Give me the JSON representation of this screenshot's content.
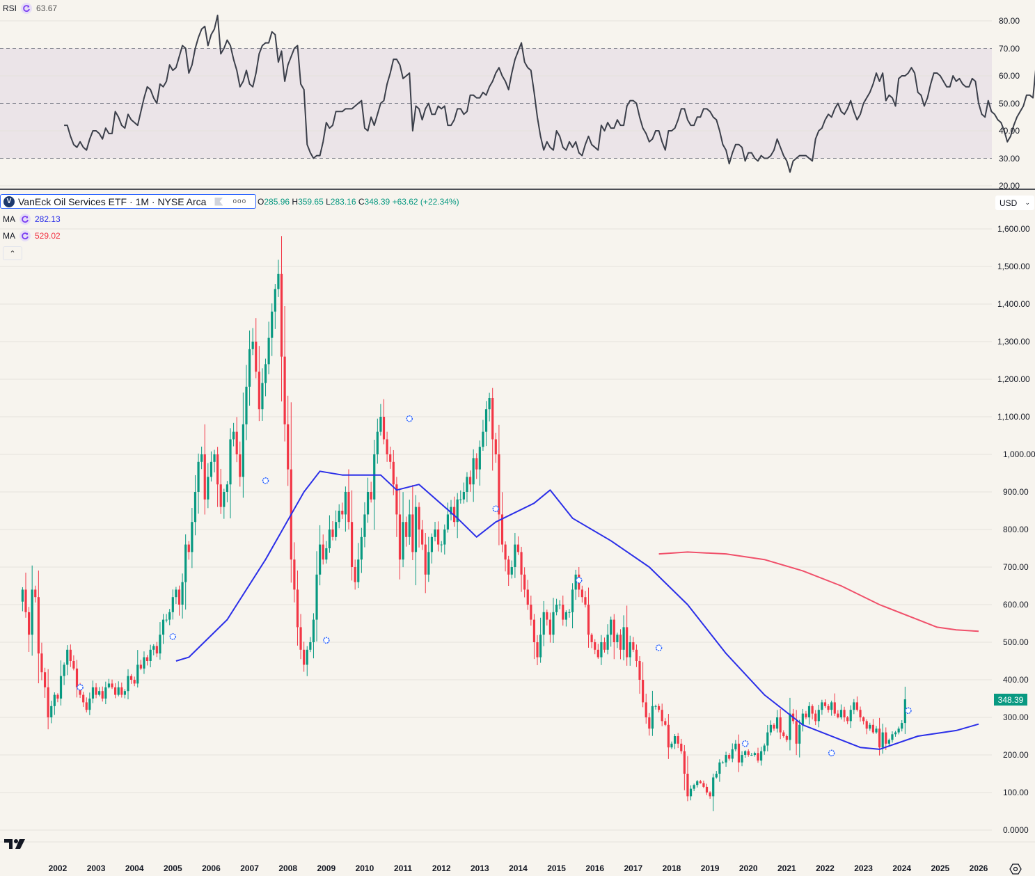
{
  "rsi_pane": {
    "label": "RSI",
    "value": "63.67",
    "axis_labels": [
      "80.00",
      "70.00",
      "60.00",
      "50.00",
      "40.00",
      "30.00",
      "20.00"
    ]
  },
  "symbol": {
    "title": "VanEck Oil Services ETF · 1M · NYSE Arca",
    "logo_letter": "V",
    "ohlc": {
      "o_label": "O",
      "o": "285.96",
      "h_label": "H",
      "h": "359.65",
      "l_label": "L",
      "l": "283.16",
      "c_label": "C",
      "c": "348.39",
      "change": "+63.62 (+22.34%)"
    }
  },
  "ma_legend": [
    {
      "label": "MA",
      "value": "282.13",
      "color": "#2a2ee8"
    },
    {
      "label": "MA",
      "value": "529.02",
      "color": "#f23645"
    }
  ],
  "currency": "USD",
  "last_price": "348.39",
  "price_axis_labels": [
    "1,600.00",
    "1,500.00",
    "1,400.00",
    "1,300.00",
    "1,200.00",
    "1,100.00",
    "1,000.00",
    "900.00",
    "800.00",
    "700.00",
    "600.00",
    "500.00",
    "400.00",
    "300.00",
    "200.00",
    "100.00",
    "0.0000"
  ],
  "time_axis_labels": [
    "2002",
    "2003",
    "2004",
    "2005",
    "2006",
    "2007",
    "2008",
    "2009",
    "2010",
    "2011",
    "2012",
    "2013",
    "2014",
    "2015",
    "2016",
    "2017",
    "2018",
    "2019",
    "2020",
    "2021",
    "2022",
    "2023",
    "2024",
    "2025",
    "2026"
  ],
  "colors": {
    "up": "#089981",
    "down": "#f23645",
    "ma_fast": "#2a2ee8",
    "ma_slow": "#f23645",
    "rsi_line": "#3b3f4a",
    "rsi_band": "#ebe4e8",
    "background": "#f7f4ee",
    "grid": "#e6e2dc"
  },
  "chart_data": [
    {
      "type": "line",
      "title": "RSI",
      "ylim": [
        20,
        82
      ],
      "bands": {
        "upper": 70,
        "middle": 50,
        "lower": 30
      },
      "x_start": "2002-03",
      "interval": "1M",
      "values": [
        42,
        42,
        38,
        35,
        34,
        36,
        34,
        33,
        37,
        40,
        40,
        39,
        37,
        41,
        39,
        39,
        47,
        45,
        42,
        41,
        46,
        44,
        43,
        42,
        47,
        52,
        56,
        55,
        52,
        50,
        57,
        56,
        58,
        64,
        62,
        63,
        67,
        71,
        70,
        61,
        64,
        70,
        74,
        77,
        78,
        71,
        75,
        77,
        82,
        68,
        70,
        73,
        71,
        66,
        62,
        56,
        58,
        62,
        57,
        56,
        61,
        68,
        71,
        72,
        72,
        76,
        75,
        65,
        69,
        58,
        64,
        67,
        70,
        71,
        57,
        55,
        35,
        32,
        30,
        31,
        31,
        36,
        43,
        41,
        42,
        47,
        47,
        47,
        48,
        48,
        48,
        49,
        50,
        51,
        41,
        40,
        45,
        42,
        46,
        50,
        51,
        57,
        61,
        66,
        66,
        64,
        59,
        60,
        61,
        40,
        49,
        48,
        44,
        48,
        50,
        46,
        46,
        49,
        48,
        49,
        42,
        42,
        44,
        48,
        48,
        46,
        47,
        53,
        53,
        52,
        52,
        54,
        53,
        56,
        58,
        61,
        63,
        60,
        58,
        55,
        61,
        66,
        69,
        72,
        65,
        63,
        62,
        54,
        45,
        38,
        33,
        36,
        34,
        33,
        40,
        38,
        34,
        33,
        36,
        34,
        36,
        32,
        31,
        35,
        38,
        35,
        34,
        33,
        42,
        40,
        43,
        41,
        41,
        44,
        42,
        42,
        49,
        51,
        51,
        50,
        45,
        41,
        39,
        36,
        37,
        40,
        40,
        36,
        33,
        40,
        40,
        41,
        44,
        48,
        48,
        44,
        42,
        42,
        45,
        45,
        48,
        48,
        47,
        45,
        44,
        40,
        35,
        33,
        28,
        32,
        35,
        35,
        34,
        29,
        32,
        32,
        30,
        29,
        31,
        30,
        30,
        31,
        33,
        37,
        34,
        31,
        29,
        25,
        29,
        30,
        31,
        31,
        31,
        30,
        29,
        37,
        40,
        41,
        44,
        46,
        45,
        48,
        50,
        47,
        46,
        48,
        51,
        47,
        44,
        46,
        50,
        52,
        54,
        57,
        61,
        58,
        61,
        51,
        53,
        52,
        49,
        59,
        60,
        60,
        61,
        63,
        61,
        54,
        53,
        49,
        52,
        57,
        61,
        61,
        60,
        58,
        56,
        56,
        60,
        58,
        59,
        57,
        56,
        56,
        59,
        58,
        50,
        46,
        45,
        51,
        47,
        46,
        44,
        43,
        40,
        36,
        38,
        42,
        45,
        47,
        49,
        53,
        53,
        52,
        64
      ]
    },
    {
      "type": "candlestick",
      "title": "VanEck Oil Services ETF · 1M · NYSE Arca",
      "ylim": [
        0,
        1600
      ],
      "x_start": "2001-02",
      "interval": "1M",
      "closes": [
        640,
        580,
        520,
        640,
        620,
        470,
        420,
        380,
        300,
        330,
        360,
        350,
        410,
        440,
        480,
        450,
        430,
        380,
        360,
        340,
        320,
        350,
        380,
        360,
        370,
        350,
        380,
        390,
        380,
        360,
        380,
        360,
        370,
        410,
        400,
        390,
        440,
        430,
        460,
        450,
        480,
        490,
        470,
        520,
        560,
        560,
        580,
        620,
        640,
        600,
        660,
        760,
        740,
        820,
        900,
        980,
        1000,
        880,
        940,
        980,
        1000,
        920,
        860,
        900,
        920,
        1040,
        1060,
        1000,
        940,
        1080,
        1180,
        1280,
        1300,
        1220,
        1120,
        1190,
        1240,
        1310,
        1380,
        1440,
        1480,
        1260,
        1080,
        960,
        720,
        640,
        540,
        480,
        440,
        480,
        500,
        560,
        680,
        760,
        720,
        750,
        800,
        780,
        820,
        850,
        840,
        900,
        820,
        700,
        660,
        720,
        780,
        840,
        900,
        880,
        1000,
        1060,
        1100,
        1040,
        1000,
        980,
        920,
        840,
        720,
        820,
        780,
        840,
        740,
        860,
        800,
        760,
        680,
        740,
        780,
        800,
        760,
        760,
        800,
        840,
        860,
        820,
        880,
        880,
        900,
        940,
        920,
        990,
        960,
        1020,
        1060,
        1120,
        1150,
        1040,
        1000,
        840,
        760,
        720,
        680,
        700,
        760,
        740,
        680,
        640,
        600,
        560,
        500,
        460,
        520,
        580,
        560,
        520,
        580,
        600,
        600,
        560,
        580,
        580,
        640,
        680,
        640,
        620,
        600,
        520,
        500,
        480,
        460,
        500,
        480,
        520,
        560,
        500,
        520,
        480,
        540,
        460,
        500,
        480,
        450,
        400,
        340,
        300,
        270,
        330,
        330,
        320,
        290,
        280,
        220,
        230,
        250,
        230,
        210,
        150,
        90,
        110,
        120,
        130,
        125,
        115,
        100,
        90,
        140,
        150,
        180,
        180,
        200,
        190,
        215,
        230,
        180,
        200,
        210,
        200,
        200,
        205,
        185,
        210,
        225,
        260,
        280,
        270,
        300,
        260,
        250,
        240,
        310,
        290,
        230,
        280,
        310,
        300,
        330,
        310,
        290,
        320,
        340,
        330,
        320,
        340,
        310,
        300,
        320,
        300,
        290,
        320,
        340,
        320,
        300,
        290,
        270,
        280,
        260,
        270,
        220,
        260,
        230,
        240,
        255,
        260,
        270,
        285,
        348
      ]
    },
    {
      "type": "line",
      "title": "MA (fast)",
      "last_value": 282.13,
      "approx_points": [
        [
          "2005-02",
          450
        ],
        [
          "2005-06",
          460
        ],
        [
          "2006-06",
          560
        ],
        [
          "2007-06",
          720
        ],
        [
          "2008-06",
          900
        ],
        [
          "2008-11",
          955
        ],
        [
          "2009-06",
          945
        ],
        [
          "2010-06",
          945
        ],
        [
          "2010-11",
          905
        ],
        [
          "2011-06",
          920
        ],
        [
          "2012-06",
          830
        ],
        [
          "2012-12",
          780
        ],
        [
          "2013-06",
          820
        ],
        [
          "2014-06",
          870
        ],
        [
          "2014-11",
          905
        ],
        [
          "2015-06",
          830
        ],
        [
          "2016-06",
          770
        ],
        [
          "2017-06",
          700
        ],
        [
          "2018-06",
          600
        ],
        [
          "2019-06",
          470
        ],
        [
          "2020-06",
          360
        ],
        [
          "2021-06",
          280
        ],
        [
          "2022-06",
          240
        ],
        [
          "2022-12",
          220
        ],
        [
          "2023-06",
          215
        ],
        [
          "2024-06",
          250
        ],
        [
          "2025-06",
          265
        ],
        [
          "2026-01",
          282
        ]
      ]
    },
    {
      "type": "line",
      "title": "MA (slow)",
      "last_value": 529.02,
      "approx_points": [
        [
          "2017-09",
          735
        ],
        [
          "2018-06",
          740
        ],
        [
          "2019-06",
          735
        ],
        [
          "2020-06",
          720
        ],
        [
          "2021-06",
          690
        ],
        [
          "2022-06",
          650
        ],
        [
          "2023-06",
          600
        ],
        [
          "2024-06",
          560
        ],
        [
          "2024-12",
          540
        ],
        [
          "2025-06",
          533
        ],
        [
          "2026-01",
          529
        ]
      ]
    }
  ]
}
